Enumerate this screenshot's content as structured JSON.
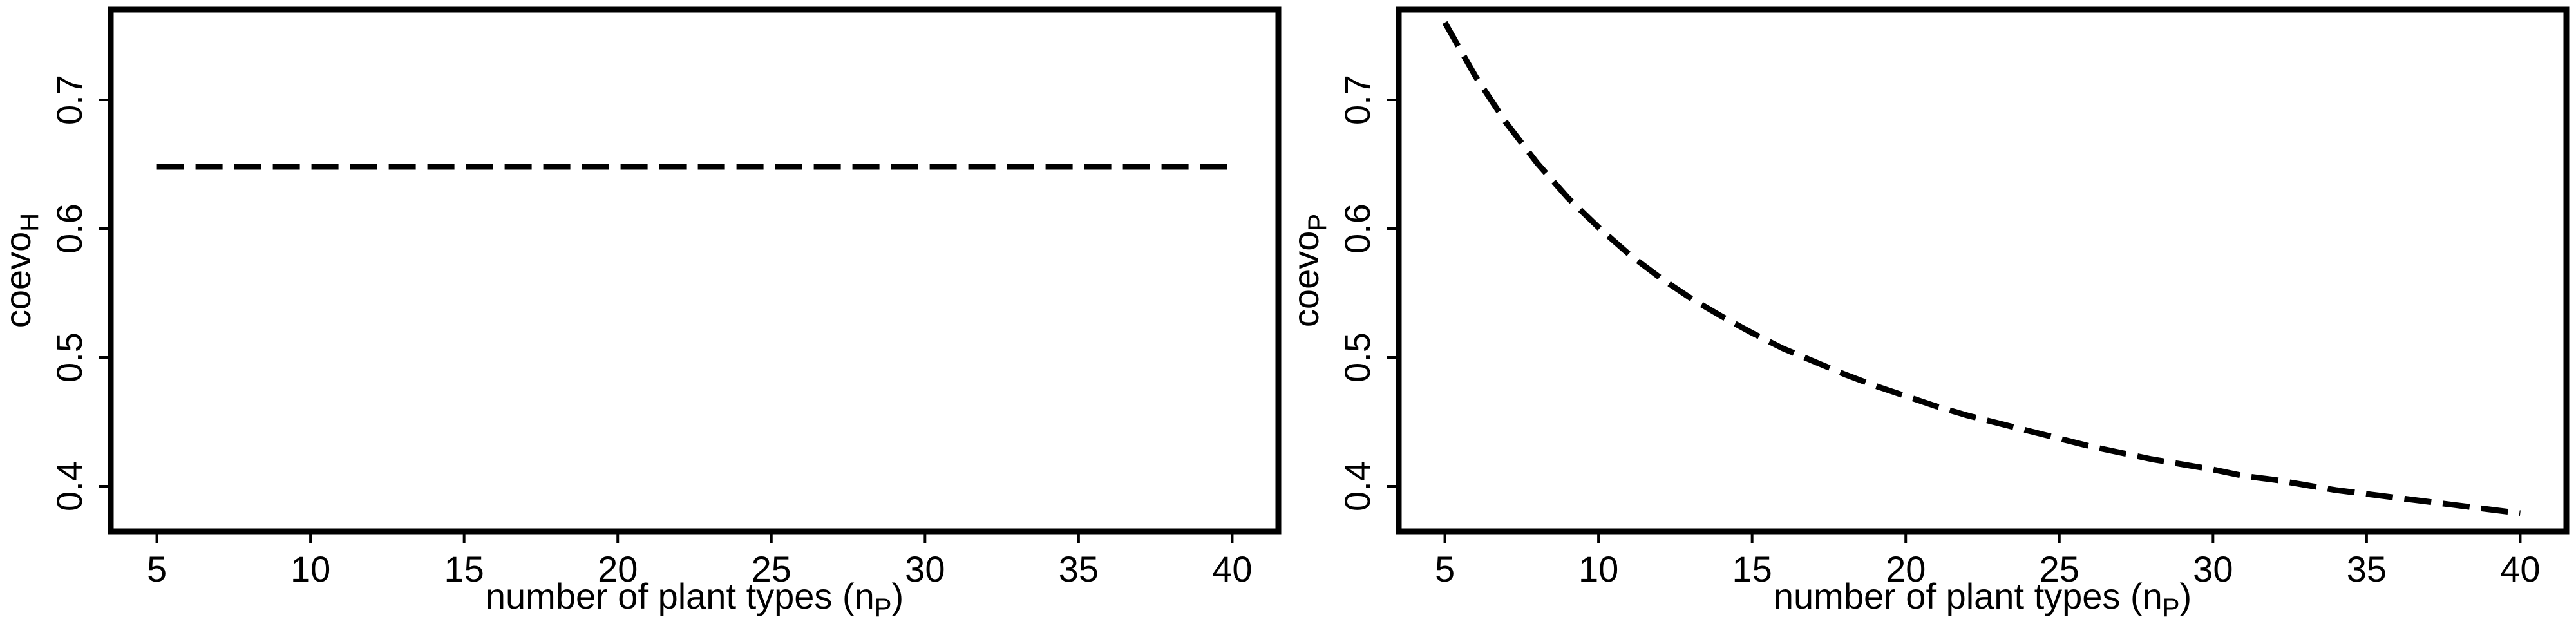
{
  "chart_data": [
    {
      "type": "line",
      "xlabel": "number of plant types (n",
      "xlabel_sub": "P",
      "xlabel_suffix": ")",
      "ylabel": "coevo",
      "ylabel_sub": "H",
      "xlim": [
        3.5,
        41.5
      ],
      "ylim": [
        0.365,
        0.77
      ],
      "xticks": [
        5,
        10,
        15,
        20,
        25,
        30,
        35,
        40
      ],
      "yticks": [
        0.4,
        0.5,
        0.6,
        0.7
      ],
      "ytick_labels": [
        "0.4",
        "0.5",
        "0.6",
        "0.7"
      ],
      "line_style": "dashed",
      "grid": false,
      "series": [
        {
          "x": [
            5,
            6,
            7,
            8,
            9,
            10,
            11,
            12,
            13,
            14,
            15,
            16,
            17,
            18,
            19,
            20,
            21,
            22,
            23,
            24,
            25,
            26,
            27,
            28,
            29,
            30,
            31,
            32,
            33,
            34,
            35,
            36,
            37,
            38,
            39,
            40
          ],
          "y": [
            0.648,
            0.648,
            0.648,
            0.648,
            0.648,
            0.648,
            0.648,
            0.648,
            0.648,
            0.648,
            0.648,
            0.648,
            0.648,
            0.648,
            0.648,
            0.648,
            0.648,
            0.648,
            0.648,
            0.648,
            0.648,
            0.648,
            0.648,
            0.648,
            0.648,
            0.648,
            0.648,
            0.648,
            0.648,
            0.648,
            0.648,
            0.648,
            0.648,
            0.648,
            0.648,
            0.648
          ]
        }
      ]
    },
    {
      "type": "line",
      "xlabel": "number of plant types (n",
      "xlabel_sub": "P",
      "xlabel_suffix": ")",
      "ylabel": "coevo",
      "ylabel_sub": "P",
      "xlim": [
        3.5,
        41.5
      ],
      "ylim": [
        0.365,
        0.77
      ],
      "xticks": [
        5,
        10,
        15,
        20,
        25,
        30,
        35,
        40
      ],
      "yticks": [
        0.4,
        0.5,
        0.6,
        0.7
      ],
      "ytick_labels": [
        "0.4",
        "0.5",
        "0.6",
        "0.7"
      ],
      "line_style": "dashed",
      "grid": false,
      "series": [
        {
          "x": [
            5,
            6,
            7,
            8,
            9,
            10,
            11,
            12,
            13,
            14,
            15,
            16,
            17,
            18,
            19,
            20,
            21,
            22,
            23,
            24,
            25,
            26,
            27,
            28,
            29,
            30,
            31,
            32,
            33,
            34,
            35,
            36,
            37,
            38,
            39,
            40
          ],
          "y": [
            0.76,
            0.718,
            0.682,
            0.651,
            0.624,
            0.601,
            0.58,
            0.562,
            0.546,
            0.532,
            0.519,
            0.507,
            0.497,
            0.487,
            0.478,
            0.47,
            0.462,
            0.455,
            0.449,
            0.443,
            0.437,
            0.431,
            0.426,
            0.421,
            0.417,
            0.413,
            0.408,
            0.405,
            0.401,
            0.397,
            0.394,
            0.391,
            0.388,
            0.385,
            0.382,
            0.379
          ]
        }
      ]
    }
  ]
}
